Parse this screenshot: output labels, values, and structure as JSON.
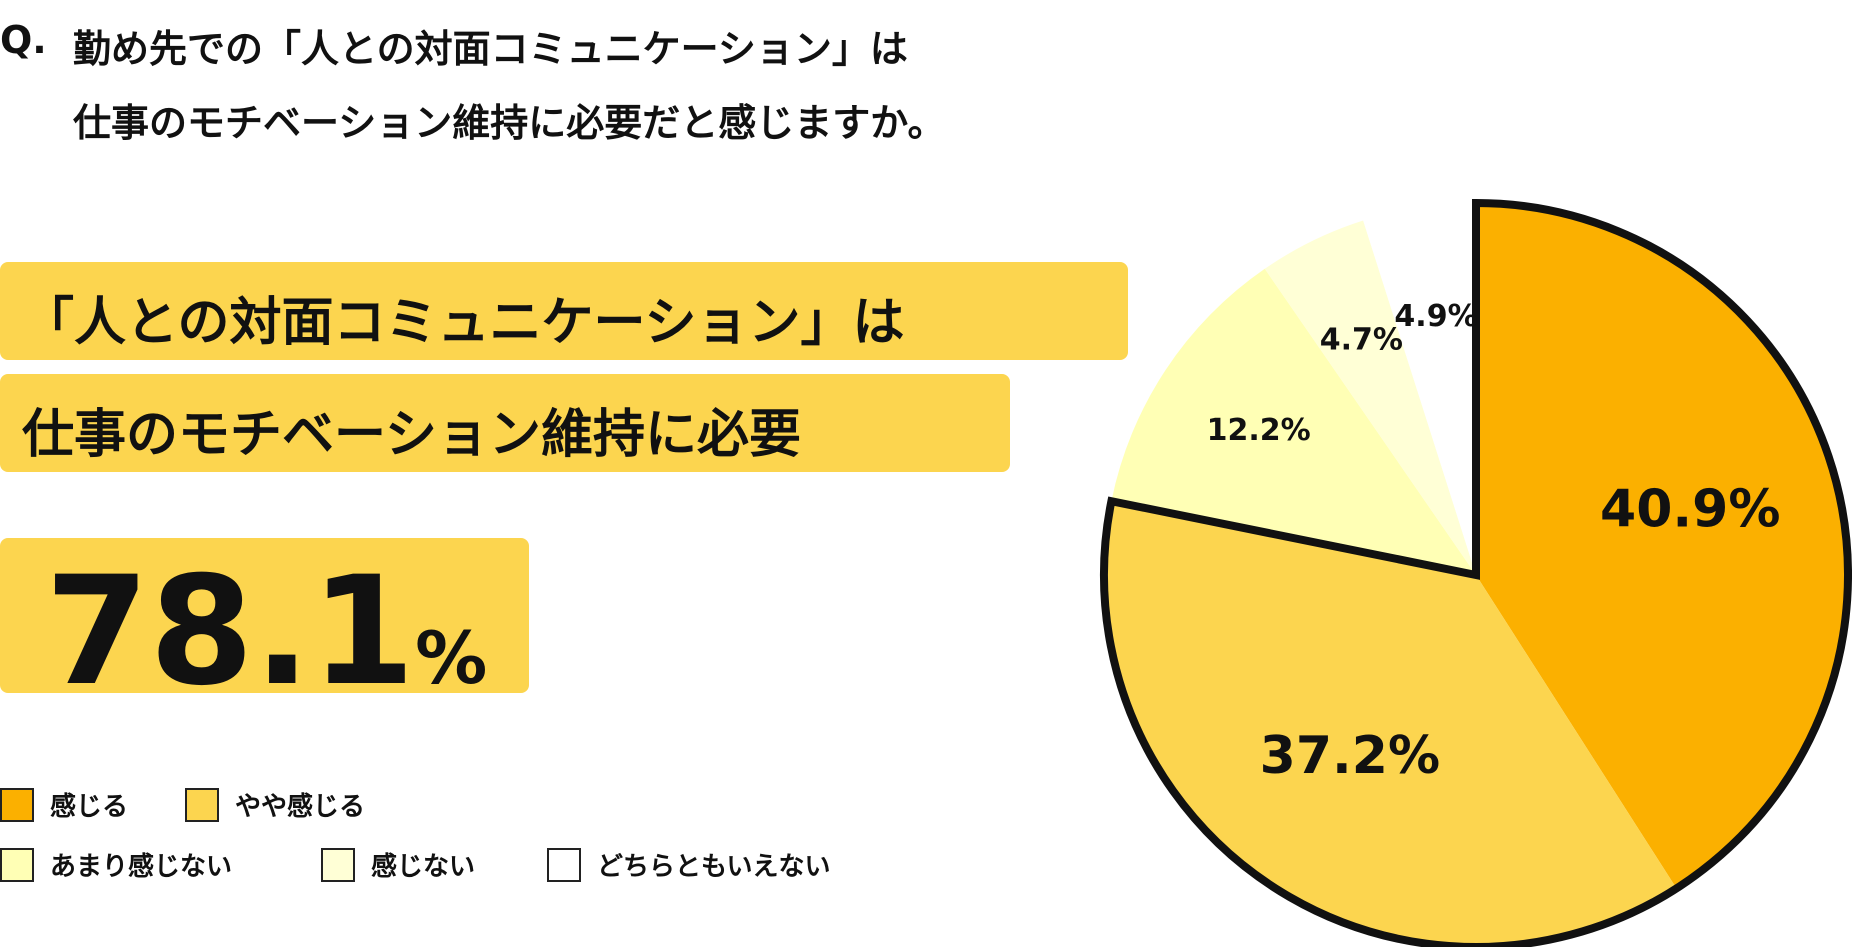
{
  "question": {
    "prefix": "Q.",
    "lines": [
      "勤め先での「人との対面コミュニケーション」は",
      "仕事のモチベーション維持に必要だと感じますか。"
    ]
  },
  "headline": {
    "lines": [
      "「人との対面コミュニケーション」は",
      "仕事のモチベーション維持に必要"
    ],
    "number": "78.1",
    "unit": "%"
  },
  "chart_data": {
    "type": "pie",
    "categories": [
      "感じる",
      "やや感じる",
      "あまり感じない",
      "感じない",
      "どちらともいえない"
    ],
    "values": [
      40.9,
      37.2,
      12.2,
      4.7,
      4.9
    ],
    "value_labels": [
      "40.9%",
      "37.2%",
      "12.2%",
      "4.7%",
      "4.9%"
    ],
    "colors": [
      "#fbb000",
      "#fcd54f",
      "#ffffb5",
      "#ffffd6",
      "#ffffff"
    ],
    "start_angle": 0,
    "direction": "clockwise"
  }
}
